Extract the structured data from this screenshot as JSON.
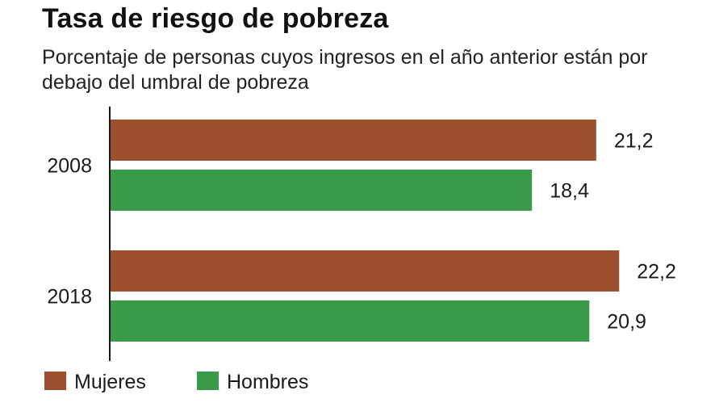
{
  "chart_data": {
    "type": "bar",
    "orientation": "horizontal",
    "title": "Tasa de riesgo de pobreza",
    "subtitle": "Porcentaje de personas cuyos ingresos en el año anterior están por debajo del umbral de pobreza",
    "categories": [
      "2008",
      "2018"
    ],
    "series": [
      {
        "name": "Mujeres",
        "color": "#9e4f2f",
        "values": [
          21.2,
          22.2
        ],
        "labels": [
          "21,2",
          "22,2"
        ]
      },
      {
        "name": "Hombres",
        "color": "#3a9a4a",
        "values": [
          18.4,
          20.9
        ],
        "labels": [
          "18,4",
          "20,9"
        ]
      }
    ],
    "xlim": [
      0,
      23
    ],
    "grid": false,
    "legend_position": "bottom-left"
  }
}
